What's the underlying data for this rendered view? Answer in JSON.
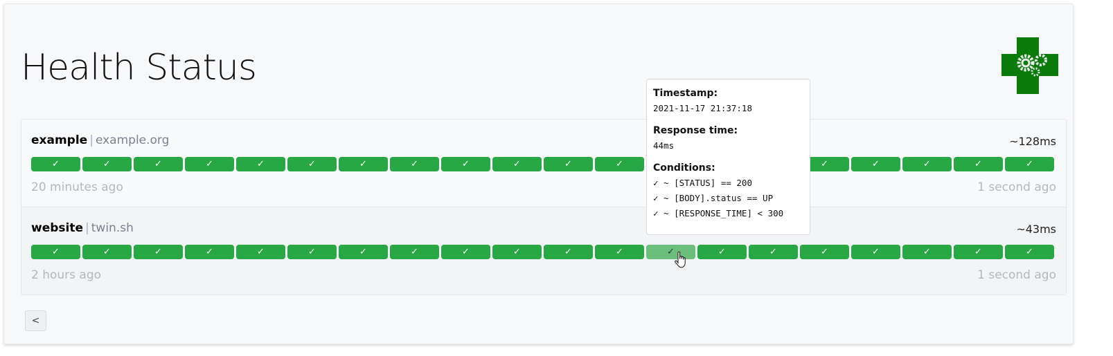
{
  "header": {
    "title": "Health Status",
    "logo_icon": "green-cross-gears-logo"
  },
  "colors": {
    "success": "#28a745",
    "hover": "#6bbf7a"
  },
  "services": [
    {
      "name": "example",
      "host": "example.org",
      "response_time": "~128ms",
      "oldest": "20 minutes ago",
      "newest": "1 second ago",
      "results": [
        "success",
        "success",
        "success",
        "success",
        "success",
        "success",
        "success",
        "success",
        "success",
        "success",
        "success",
        "success",
        "success",
        "success",
        "success",
        "success",
        "success",
        "success",
        "success",
        "success"
      ]
    },
    {
      "name": "website",
      "host": "twin.sh",
      "response_time": "~43ms",
      "oldest": "2 hours ago",
      "newest": "1 second ago",
      "results": [
        "success",
        "success",
        "success",
        "success",
        "success",
        "success",
        "success",
        "success",
        "success",
        "success",
        "success",
        "success",
        "success",
        "success",
        "success",
        "success",
        "success",
        "success",
        "success",
        "success"
      ],
      "hovered_index": 12
    }
  ],
  "tooltip": {
    "timestamp_label": "Timestamp:",
    "timestamp": "2021-11-17 21:37:18",
    "response_label": "Response time:",
    "response": "44ms",
    "conditions_label": "Conditions:",
    "conditions": [
      "✓ ~ [STATUS] == 200",
      "✓ ~ [BODY].status == UP",
      "✓ ~ [RESPONSE_TIME] < 300"
    ]
  },
  "pagination": {
    "prev_label": "<"
  },
  "check_glyph": "✓"
}
